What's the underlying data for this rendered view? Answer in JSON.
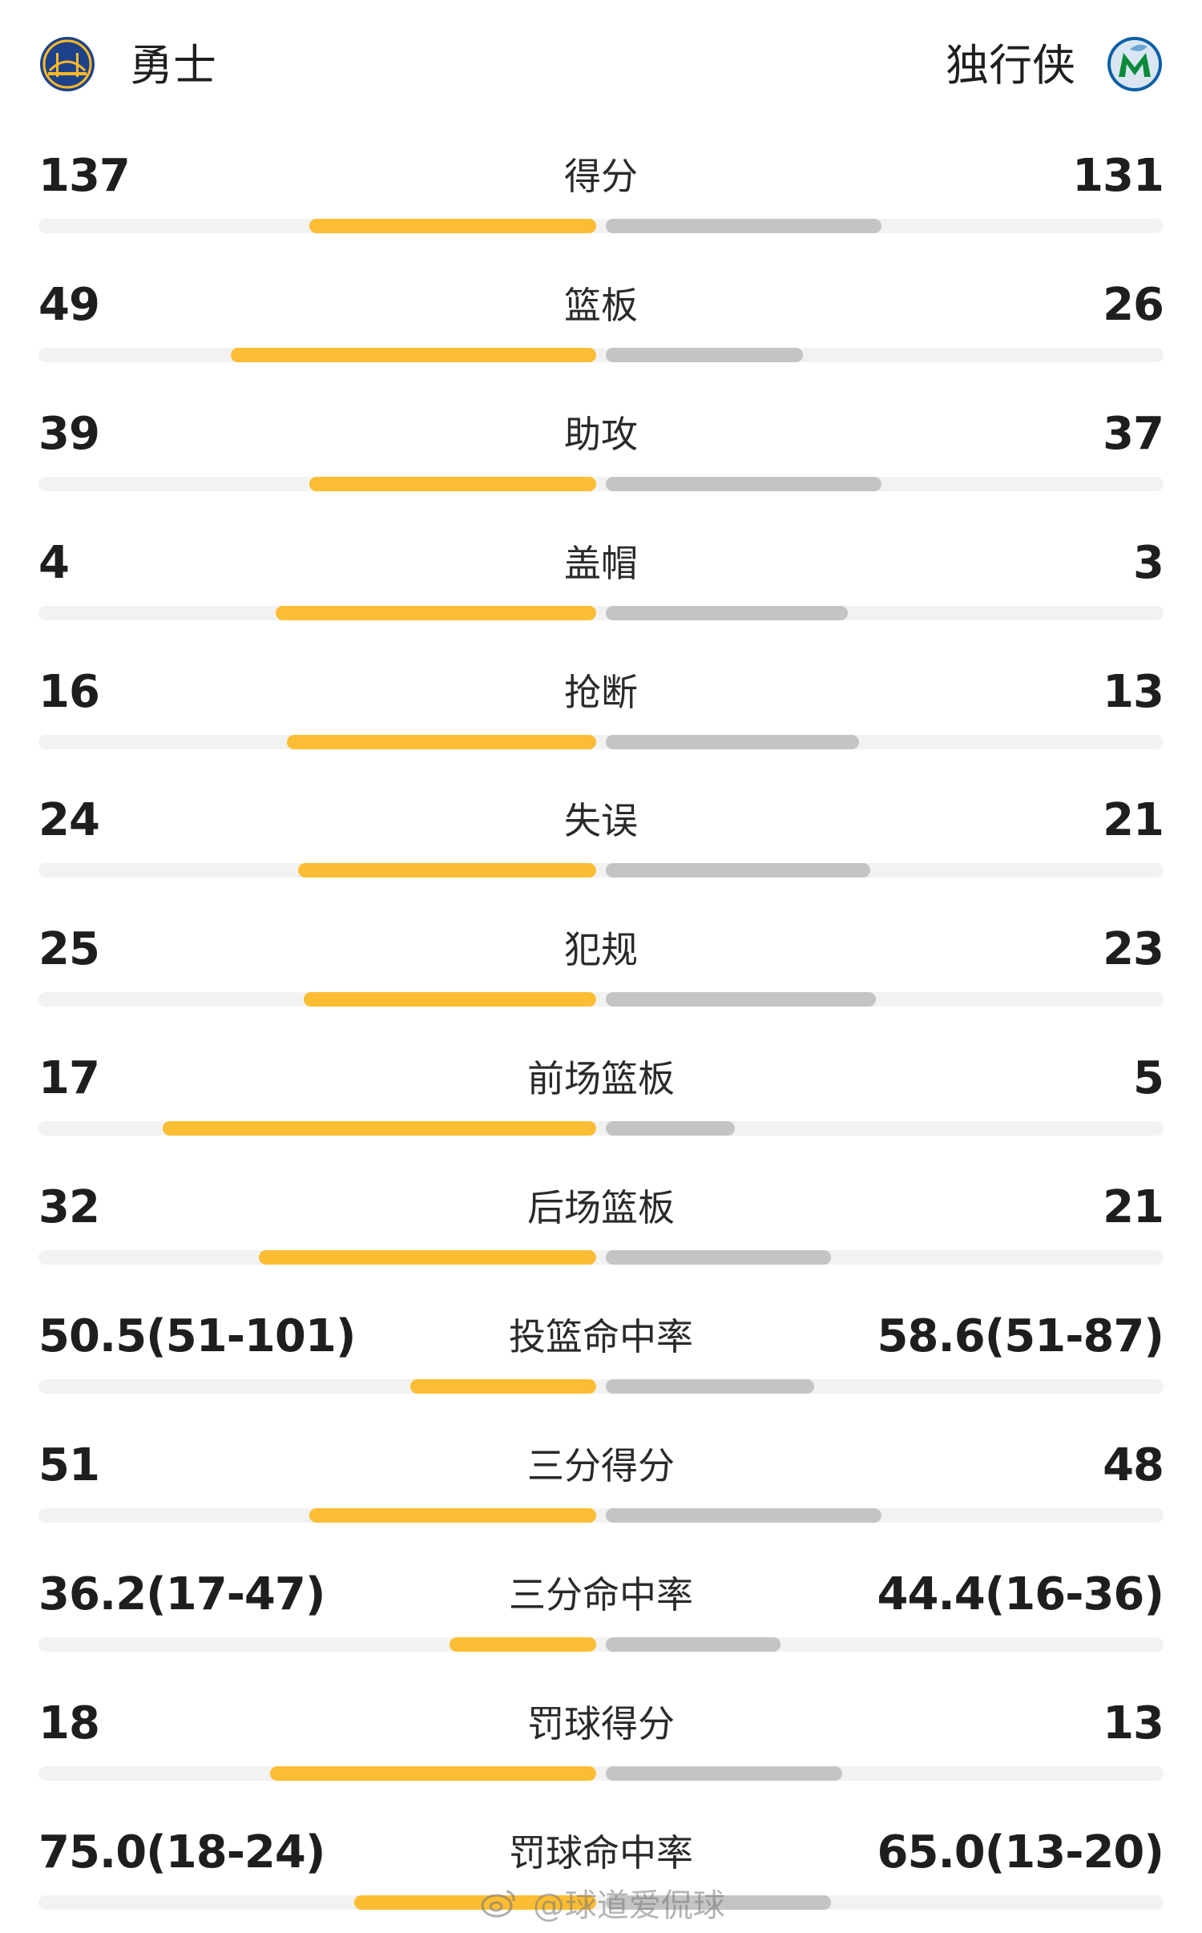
{
  "header": {
    "team_left": "勇士",
    "team_right": "独行侠",
    "logo_left_icon": "warriors-logo-icon",
    "logo_right_icon": "mavericks-logo-icon"
  },
  "colors": {
    "left_bar": "#fbbd33",
    "right_bar": "#c4c4c4",
    "track": "#f2f2f2"
  },
  "stats": [
    {
      "label": "得分",
      "left": "137",
      "right": "131",
      "left_share": 0.51,
      "right_share": 0.49
    },
    {
      "label": "篮板",
      "left": "49",
      "right": "26",
      "left_share": 0.65,
      "right_share": 0.35
    },
    {
      "label": "助攻",
      "left": "39",
      "right": "37",
      "left_share": 0.51,
      "right_share": 0.49
    },
    {
      "label": "盖帽",
      "left": "4",
      "right": "3",
      "left_share": 0.57,
      "right_share": 0.43
    },
    {
      "label": "抢断",
      "left": "16",
      "right": "13",
      "left_share": 0.55,
      "right_share": 0.45
    },
    {
      "label": "失误",
      "left": "24",
      "right": "21",
      "left_share": 0.53,
      "right_share": 0.47
    },
    {
      "label": "犯规",
      "left": "25",
      "right": "23",
      "left_share": 0.52,
      "right_share": 0.48
    },
    {
      "label": "前场篮板",
      "left": "17",
      "right": "5",
      "left_share": 0.77,
      "right_share": 0.23
    },
    {
      "label": "后场篮板",
      "left": "32",
      "right": "21",
      "left_share": 0.6,
      "right_share": 0.4
    },
    {
      "label": "投篮命中率",
      "left": "50.5(51-101)",
      "right": "58.6(51-87)",
      "left_share": 0.33,
      "right_share": 0.37
    },
    {
      "label": "三分得分",
      "left": "51",
      "right": "48",
      "left_share": 0.51,
      "right_share": 0.49
    },
    {
      "label": "三分命中率",
      "left": "36.2(17-47)",
      "right": "44.4(16-36)",
      "left_share": 0.26,
      "right_share": 0.31
    },
    {
      "label": "罚球得分",
      "left": "18",
      "right": "13",
      "left_share": 0.58,
      "right_share": 0.42
    },
    {
      "label": "罚球命中率",
      "left": "75.0(18-24)",
      "right": "65.0(13-20)",
      "left_share": 0.43,
      "right_share": 0.4
    }
  ],
  "watermark": {
    "icon": "weibo-icon",
    "text": "@球道爱侃球"
  }
}
